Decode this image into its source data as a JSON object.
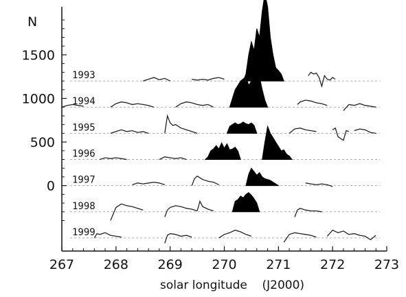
{
  "chart_data": {
    "type": "line",
    "title": "",
    "xlabel": "solar longitude    (J2000)",
    "ylabel": "N",
    "xlim": [
      267,
      273
    ],
    "ylim": [
      -750,
      2050
    ],
    "x_ticks": [
      267,
      268,
      269,
      270,
      271,
      272,
      273
    ],
    "y_ticks": [
      0,
      500,
      1000,
      1500
    ],
    "grid": false,
    "legend": "none",
    "colors": {
      "line": "#222222",
      "fill": "#000000",
      "baseline": "#aaaaaa"
    },
    "series": [
      {
        "name": "1993",
        "offset": 1200,
        "segments": [
          {
            "x": [
              268.5,
              268.6,
              268.7,
              268.8,
              268.9,
              269.0
            ],
            "y": [
              0,
              20,
              40,
              15,
              30,
              0
            ]
          },
          {
            "x": [
              269.4,
              269.5,
              269.6,
              269.7,
              269.8,
              269.9,
              270.0
            ],
            "y": [
              20,
              10,
              20,
              10,
              30,
              40,
              20
            ]
          },
          {
            "x": [
              271.55,
              271.6,
              271.65,
              271.7,
              271.75,
              271.8,
              271.85,
              271.9,
              271.95,
              272.0,
              272.05
            ],
            "y": [
              60,
              100,
              80,
              90,
              40,
              -60,
              60,
              20,
              10,
              40,
              20
            ]
          }
        ],
        "peak": {
          "x": [
            270.35,
            270.4,
            270.45,
            270.5,
            270.55,
            270.6,
            270.65,
            270.7,
            270.75,
            270.8,
            270.85,
            270.9,
            270.95,
            271.0,
            271.05,
            271.1
          ],
          "y": [
            0,
            80,
            300,
            450,
            350,
            600,
            500,
            800,
            1000,
            850,
            500,
            300,
            150,
            120,
            80,
            0
          ]
        }
      },
      {
        "name": "1994",
        "offset": 900,
        "segments": [
          {
            "x": [
              267.0,
              267.1,
              267.2,
              267.3,
              267.4
            ],
            "y": [
              0,
              20,
              30,
              20,
              10
            ]
          },
          {
            "x": [
              267.9,
              268.0,
              268.1,
              268.2,
              268.3,
              268.4,
              268.5,
              268.6,
              268.7
            ],
            "y": [
              0,
              40,
              60,
              50,
              30,
              40,
              30,
              20,
              0
            ]
          },
          {
            "x": [
              269.1,
              269.2,
              269.3,
              269.4,
              269.5,
              269.6,
              269.7,
              269.8
            ],
            "y": [
              0,
              40,
              60,
              50,
              30,
              20,
              30,
              0
            ]
          },
          {
            "x": [
              271.35,
              271.4,
              271.5,
              271.6,
              271.7,
              271.8,
              271.9
            ],
            "y": [
              30,
              60,
              80,
              70,
              50,
              40,
              20
            ]
          },
          {
            "x": [
              272.2,
              272.3,
              272.4,
              272.5,
              272.6,
              272.7,
              272.8
            ],
            "y": [
              -40,
              30,
              20,
              40,
              20,
              10,
              0
            ]
          }
        ],
        "peak": {
          "x": [
            270.1,
            270.15,
            270.2,
            270.3,
            270.4,
            270.45,
            270.5,
            270.6,
            270.65,
            270.7,
            270.75,
            270.8
          ],
          "y": [
            0,
            100,
            200,
            300,
            350,
            250,
            300,
            400,
            350,
            200,
            80,
            0
          ]
        }
      },
      {
        "name": "1995",
        "offset": 600,
        "segments": [
          {
            "x": [
              267.9,
              268.0,
              268.1,
              268.2,
              268.3,
              268.4,
              268.5,
              268.6
            ],
            "y": [
              0,
              20,
              40,
              20,
              30,
              10,
              20,
              0
            ]
          },
          {
            "x": [
              268.9,
              268.95,
              269.0,
              269.05,
              269.1,
              269.2,
              269.3,
              269.4,
              269.5
            ],
            "y": [
              0,
              200,
              120,
              90,
              100,
              60,
              40,
              20,
              0
            ]
          },
          {
            "x": [
              271.2,
              271.3,
              271.4,
              271.5,
              271.6,
              271.7
            ],
            "y": [
              0,
              50,
              60,
              40,
              30,
              20
            ]
          },
          {
            "x": [
              272.0,
              272.05,
              272.1,
              272.2,
              272.25,
              272.3
            ],
            "y": [
              40,
              60,
              -40,
              -80,
              30,
              20
            ]
          },
          {
            "x": [
              272.4,
              272.5,
              272.6,
              272.7,
              272.8
            ],
            "y": [
              30,
              50,
              40,
              10,
              0
            ]
          }
        ],
        "peak": {
          "x": [
            270.05,
            270.1,
            270.15,
            270.2,
            270.25,
            270.3,
            270.35,
            270.4,
            270.45,
            270.5,
            270.55,
            270.6
          ],
          "y": [
            0,
            80,
            100,
            120,
            100,
            110,
            130,
            110,
            100,
            120,
            90,
            0
          ]
        }
      },
      {
        "name": "1996",
        "offset": 300,
        "segments": [
          {
            "x": [
              267.7,
              267.8,
              267.9,
              268.0,
              268.1,
              268.2
            ],
            "y": [
              0,
              20,
              10,
              20,
              10,
              0
            ]
          },
          {
            "x": [
              268.8,
              268.9,
              269.0,
              269.1,
              269.2,
              269.3
            ],
            "y": [
              0,
              30,
              20,
              10,
              20,
              0
            ]
          }
        ],
        "peaks": [
          {
            "x": [
              269.65,
              269.7,
              269.75,
              269.8,
              269.85,
              269.9,
              269.95,
              270.0,
              270.05,
              270.1,
              270.15,
              270.2,
              270.25,
              270.3
            ],
            "y": [
              0,
              30,
              100,
              120,
              160,
              120,
              190,
              130,
              180,
              110,
              120,
              140,
              100,
              0
            ]
          },
          {
            "x": [
              270.7,
              270.75,
              270.8,
              270.85,
              270.9,
              270.95,
              271.0,
              271.05,
              271.1,
              271.15,
              271.2,
              271.25
            ],
            "y": [
              0,
              200,
              380,
              300,
              250,
              200,
              150,
              100,
              110,
              60,
              40,
              0
            ]
          }
        ]
      },
      {
        "name": "1997",
        "offset": 0,
        "segments": [
          {
            "x": [
              268.3,
              268.4,
              268.5,
              268.6,
              268.7,
              268.8,
              268.9
            ],
            "y": [
              10,
              30,
              20,
              30,
              40,
              30,
              10
            ]
          },
          {
            "x": [
              269.4,
              269.45,
              269.5,
              269.55,
              269.6,
              269.7,
              269.8,
              269.9
            ],
            "y": [
              0,
              80,
              110,
              90,
              70,
              50,
              40,
              10
            ]
          },
          {
            "x": [
              271.5,
              271.6,
              271.7,
              271.8,
              271.9,
              272.0
            ],
            "y": [
              30,
              20,
              10,
              20,
              10,
              -10
            ]
          }
        ],
        "peak": {
          "x": [
            270.4,
            270.45,
            270.5,
            270.55,
            270.6,
            270.65,
            270.7,
            270.75,
            270.8,
            270.85,
            270.9,
            270.95,
            271.0
          ],
          "y": [
            0,
            130,
            200,
            160,
            120,
            150,
            100,
            80,
            70,
            60,
            40,
            20,
            0
          ]
        }
      },
      {
        "name": "1998",
        "offset": -300,
        "segments": [
          {
            "x": [
              267.9,
              268.0,
              268.1,
              268.2,
              268.3,
              268.4,
              268.5
            ],
            "y": [
              -100,
              50,
              90,
              70,
              60,
              40,
              20
            ]
          },
          {
            "x": [
              268.9,
              268.95,
              269.0,
              269.1,
              269.2,
              269.3,
              269.4,
              269.5
            ],
            "y": [
              -60,
              20,
              50,
              70,
              60,
              40,
              30,
              10
            ]
          },
          {
            "x": [
              269.5,
              269.55,
              269.6,
              269.7,
              269.8
            ],
            "y": [
              10,
              120,
              60,
              30,
              10
            ]
          },
          {
            "x": [
              271.3,
              271.35,
              271.4,
              271.5,
              271.6,
              271.7,
              271.8
            ],
            "y": [
              -60,
              20,
              40,
              20,
              10,
              10,
              0
            ]
          }
        ],
        "peak": {
          "x": [
            270.15,
            270.2,
            270.25,
            270.3,
            270.35,
            270.4,
            270.45,
            270.5,
            270.55,
            270.6,
            270.65
          ],
          "y": [
            0,
            120,
            140,
            180,
            160,
            200,
            220,
            190,
            150,
            100,
            0
          ]
        }
      },
      {
        "name": "1999",
        "offset": -600,
        "segments": [
          {
            "x": [
              267.6,
              267.65,
              267.7,
              267.8,
              267.9,
              268.0,
              268.1
            ],
            "y": [
              0,
              50,
              40,
              60,
              30,
              20,
              10
            ]
          },
          {
            "x": [
              268.9,
              268.95,
              269.0,
              269.1,
              269.2,
              269.3,
              269.4
            ],
            "y": [
              -60,
              30,
              50,
              40,
              20,
              30,
              10
            ]
          },
          {
            "x": [
              269.9,
              270.0,
              270.1,
              270.2,
              270.3,
              270.4,
              270.5
            ],
            "y": [
              0,
              40,
              60,
              90,
              70,
              40,
              20
            ]
          },
          {
            "x": [
              271.1,
              271.2,
              271.3,
              271.4,
              271.5,
              271.6,
              271.7
            ],
            "y": [
              -50,
              40,
              60,
              50,
              40,
              30,
              10
            ]
          },
          {
            "x": [
              271.9,
              272.0,
              272.1,
              272.2,
              272.3,
              272.4,
              272.5,
              272.6,
              272.7,
              272.8
            ],
            "y": [
              20,
              90,
              60,
              80,
              40,
              50,
              30,
              20,
              -20,
              30
            ]
          }
        ]
      }
    ]
  }
}
